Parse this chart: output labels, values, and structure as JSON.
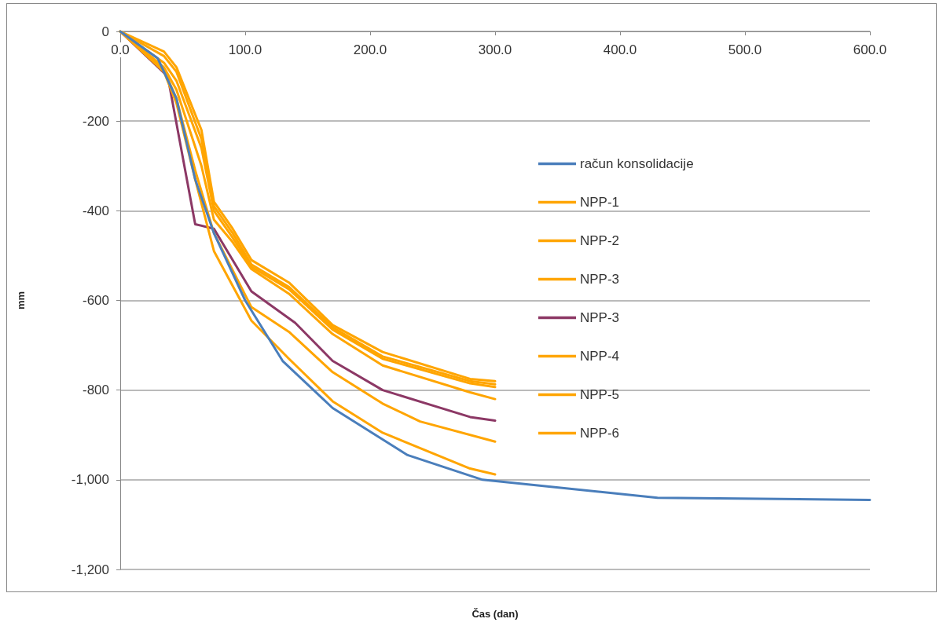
{
  "chart_data": {
    "type": "line",
    "xlabel": "Čas (dan)",
    "ylabel": "mm",
    "xlim": [
      0,
      600
    ],
    "ylim": [
      -1200,
      0
    ],
    "xticks": [
      {
        "value": 0,
        "label": "0.0"
      },
      {
        "value": 100,
        "label": "100.0"
      },
      {
        "value": 200,
        "label": "200.0"
      },
      {
        "value": 300,
        "label": "300.0"
      },
      {
        "value": 400,
        "label": "400.0"
      },
      {
        "value": 500,
        "label": "500.0"
      },
      {
        "value": 600,
        "label": "600.0"
      }
    ],
    "yticks": [
      {
        "value": -1200,
        "label": "-1,200"
      },
      {
        "value": -1000,
        "label": "-1,000"
      },
      -800,
      -600,
      -400,
      -200,
      0
    ],
    "grid": "y",
    "legend": "right",
    "marker": "none",
    "line_style": "solid",
    "series": [
      {
        "name": "račun konsolidacije",
        "color": "#4a7ebb",
        "x": [
          0,
          30,
          45,
          60,
          75,
          100,
          130,
          170,
          230,
          290,
          430,
          600
        ],
        "values": [
          0,
          -60,
          -150,
          -330,
          -450,
          -600,
          -735,
          -840,
          -945,
          -1000,
          -1040,
          -1045
        ]
      },
      {
        "name": "NPP-1",
        "color": "#ffa500",
        "x": [
          0,
          35,
          45,
          65,
          75,
          90,
          105,
          135,
          170,
          210,
          280,
          300
        ],
        "values": [
          0,
          -45,
          -80,
          -220,
          -380,
          -440,
          -510,
          -560,
          -655,
          -715,
          -775,
          -780
        ]
      },
      {
        "name": "NPP-2",
        "color": "#ffa500",
        "x": [
          0,
          35,
          45,
          65,
          75,
          90,
          105,
          135,
          170,
          210,
          280,
          300
        ],
        "values": [
          0,
          -55,
          -90,
          -240,
          -390,
          -450,
          -520,
          -570,
          -660,
          -725,
          -780,
          -787
        ]
      },
      {
        "name": "NPP-3",
        "color": "#ffa500",
        "x": [
          0,
          35,
          45,
          65,
          75,
          90,
          105,
          135,
          170,
          210,
          280,
          300
        ],
        "values": [
          0,
          -70,
          -110,
          -260,
          -400,
          -460,
          -525,
          -575,
          -665,
          -730,
          -785,
          -793
        ]
      },
      {
        "name": "NPP-3",
        "color": "#8c3865",
        "x": [
          0,
          38,
          60,
          75,
          105,
          140,
          170,
          210,
          280,
          300
        ],
        "values": [
          0,
          -100,
          -430,
          -440,
          -580,
          -650,
          -735,
          -800,
          -860,
          -868
        ]
      },
      {
        "name": "NPP-4",
        "color": "#ffa500",
        "x": [
          0,
          35,
          45,
          65,
          75,
          90,
          105,
          135,
          170,
          210,
          280,
          300
        ],
        "values": [
          0,
          -80,
          -130,
          -300,
          -420,
          -470,
          -530,
          -585,
          -675,
          -745,
          -805,
          -820
        ]
      },
      {
        "name": "NPP-5",
        "color": "#ffa500",
        "x": [
          0,
          35,
          45,
          60,
          75,
          105,
          135,
          170,
          210,
          240,
          300
        ],
        "values": [
          0,
          -85,
          -150,
          -310,
          -450,
          -615,
          -670,
          -760,
          -830,
          -870,
          -915
        ]
      },
      {
        "name": "NPP-6",
        "color": "#ffa500",
        "x": [
          0,
          35,
          45,
          60,
          75,
          105,
          135,
          170,
          210,
          280,
          300
        ],
        "values": [
          0,
          -90,
          -160,
          -330,
          -490,
          -645,
          -730,
          -825,
          -895,
          -975,
          -988
        ]
      }
    ]
  }
}
